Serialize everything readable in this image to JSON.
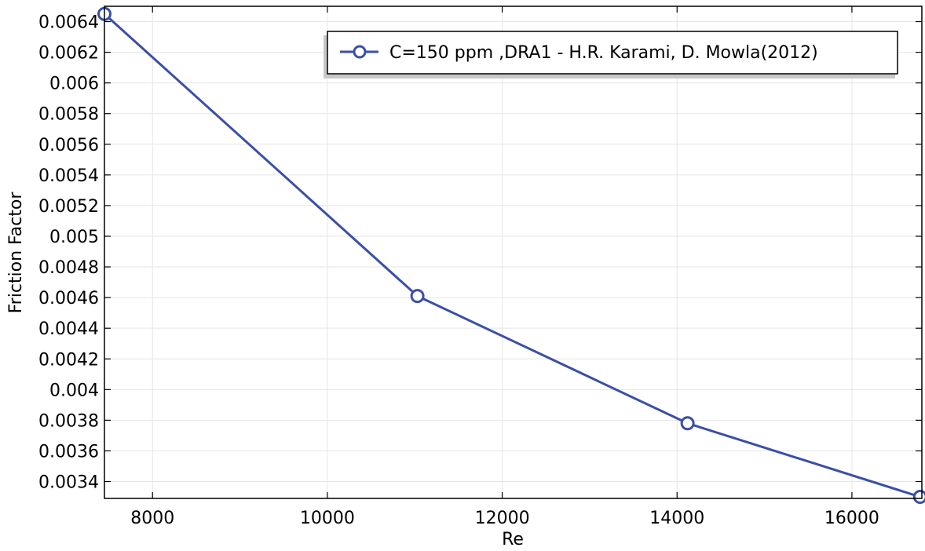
{
  "chart_data": {
    "type": "line",
    "xlabel": "Re",
    "ylabel": "Friction  Factor",
    "xlim": [
      7450,
      16800
    ],
    "ylim": [
      0.00329,
      0.0065
    ],
    "x_ticks": [
      8000,
      10000,
      12000,
      14000,
      16000
    ],
    "x_tick_labels": [
      "8000",
      "10000",
      "12000",
      "14000",
      "16000"
    ],
    "y_ticks": [
      0.0034,
      0.0036,
      0.0038,
      0.004,
      0.0042,
      0.0044,
      0.0046,
      0.0048,
      0.005,
      0.0052,
      0.0054,
      0.0056,
      0.0058,
      0.006,
      0.0062,
      0.0064
    ],
    "y_tick_labels": [
      "0.0034",
      "0.0036",
      "0.0038",
      "0.004",
      "0.0042",
      "0.0044",
      "0.0046",
      "0.0048",
      "0.005",
      "0.0052",
      "0.0054",
      "0.0056",
      "0.0058",
      "0.006",
      "0.0062",
      "0.0064"
    ],
    "grid": true,
    "legend_position": "top-right",
    "series": [
      {
        "name": "C=150 ppm ,DRA1 - H.R. Karami, D. Mowla(2012)",
        "color": "#3a4fa6",
        "marker": "circle-open",
        "x": [
          7450,
          11030,
          14120,
          16780
        ],
        "y": [
          0.00645,
          0.00461,
          0.00378,
          0.0033
        ]
      }
    ]
  }
}
